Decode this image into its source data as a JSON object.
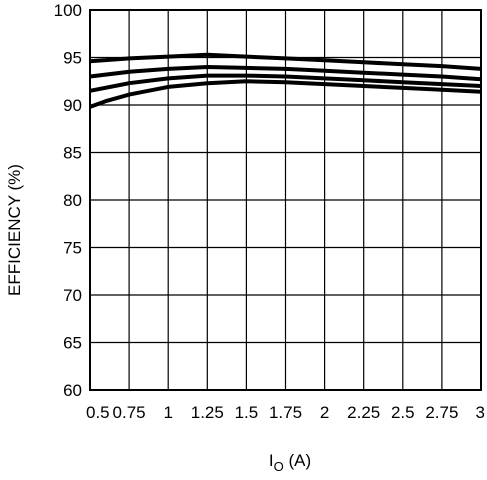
{
  "chart_data": {
    "type": "line",
    "xlabel": {
      "main": "I",
      "subscript": "O",
      "unit": " (A)"
    },
    "ylabel": "EFFICIENCY (%)",
    "xlim": [
      0.5,
      3
    ],
    "ylim": [
      60,
      100
    ],
    "xticks": [
      0.5,
      0.75,
      1,
      1.25,
      1.5,
      1.75,
      2,
      2.25,
      2.5,
      2.75,
      3
    ],
    "xtick_labels": [
      "0.5",
      "0.75",
      "1",
      "1.25",
      "1.5",
      "1.75",
      "2",
      "2.25",
      "2.5",
      "2.75",
      "3"
    ],
    "yticks": [
      60,
      65,
      70,
      75,
      80,
      85,
      90,
      95,
      100
    ],
    "ytick_labels": [
      "60",
      "65",
      "70",
      "75",
      "80",
      "85",
      "90",
      "95",
      "100"
    ],
    "grid": true,
    "legend": "none",
    "line_color": "#000000",
    "series": [
      {
        "x": [
          0.5,
          0.75,
          1,
          1.25,
          1.5,
          1.75,
          2,
          2.25,
          2.5,
          2.75,
          3
        ],
        "values": [
          94.6,
          94.9,
          95.1,
          95.3,
          95.1,
          94.9,
          94.7,
          94.5,
          94.3,
          94.1,
          93.8
        ]
      },
      {
        "x": [
          0.5,
          0.75,
          1,
          1.25,
          1.5,
          1.75,
          2,
          2.25,
          2.5,
          2.75,
          3
        ],
        "values": [
          93.0,
          93.5,
          93.8,
          94.0,
          93.9,
          93.8,
          93.6,
          93.4,
          93.2,
          93.0,
          92.7
        ]
      },
      {
        "x": [
          0.5,
          0.75,
          1,
          1.25,
          1.5,
          1.75,
          2,
          2.25,
          2.5,
          2.75,
          3
        ],
        "values": [
          91.5,
          92.3,
          92.8,
          93.1,
          93.1,
          93.0,
          92.8,
          92.6,
          92.4,
          92.2,
          92.0
        ]
      },
      {
        "x": [
          0.5,
          0.6,
          0.75,
          1,
          1.25,
          1.5,
          1.75,
          2,
          2.25,
          2.5,
          2.75,
          3
        ],
        "values": [
          89.8,
          90.4,
          91.1,
          91.9,
          92.3,
          92.5,
          92.4,
          92.2,
          92.0,
          91.8,
          91.6,
          91.4
        ]
      }
    ]
  }
}
